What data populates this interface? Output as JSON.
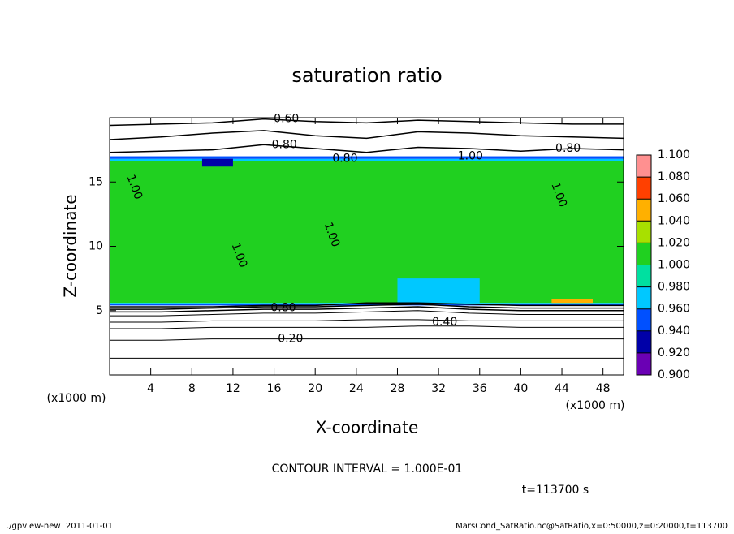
{
  "chart_data": {
    "type": "contour",
    "title": "saturation ratio",
    "x_label": "X-coordinate",
    "y_label": "Z-coordinate",
    "x_unit": "(x1000 m)",
    "y_unit": "(x1000 m)",
    "xlim": [
      0,
      50
    ],
    "xticks": [
      4,
      8,
      12,
      16,
      20,
      24,
      28,
      32,
      36,
      40,
      44,
      48
    ],
    "ylim": [
      0,
      20
    ],
    "yticks": [
      5,
      10,
      15
    ],
    "colorbar_levels": [
      {
        "value": 0.9,
        "label": "0.900"
      },
      {
        "value": 0.92,
        "label": "0.920"
      },
      {
        "value": 0.94,
        "label": "0.940"
      },
      {
        "value": 0.96,
        "label": "0.960"
      },
      {
        "value": 0.98,
        "label": "0.980"
      },
      {
        "value": 1.0,
        "label": "1.000"
      },
      {
        "value": 1.02,
        "label": "1.020"
      },
      {
        "value": 1.04,
        "label": "1.040"
      },
      {
        "value": 1.06,
        "label": "1.060"
      },
      {
        "value": 1.08,
        "label": "1.080"
      },
      {
        "value": 1.1,
        "label": "1.100"
      }
    ],
    "colorbar_colors": [
      "#6a00b4",
      "#0000a8",
      "#0050ff",
      "#00c8ff",
      "#00e0a0",
      "#20d020",
      "#a8e000",
      "#ffb000",
      "#ff4000",
      "#ff9090"
    ],
    "field": [
      {
        "x0": 0,
        "x1": 50,
        "z0": 5.6,
        "z1": 16.6,
        "value": 1.01
      },
      {
        "x0": 0,
        "x1": 50,
        "z0": 16.6,
        "z1": 16.8,
        "value": 0.97
      },
      {
        "x0": 0,
        "x1": 50,
        "z0": 16.8,
        "z1": 17.0,
        "value": 0.95
      },
      {
        "x0": 0,
        "x1": 50,
        "z0": 5.5,
        "z1": 5.6,
        "value": 0.97
      },
      {
        "x0": 0,
        "x1": 50,
        "z0": 5.4,
        "z1": 5.5,
        "value": 0.95
      },
      {
        "x0": 43,
        "x1": 47,
        "z0": 5.6,
        "z1": 5.9,
        "value": 1.05
      },
      {
        "x0": 9,
        "x1": 12,
        "z0": 16.2,
        "z1": 16.8,
        "value": 0.93
      },
      {
        "x0": 28,
        "x1": 36,
        "z0": 5.6,
        "z1": 7.5,
        "value": 0.97
      }
    ],
    "contour_x": [
      0,
      5,
      10,
      15,
      20,
      25,
      30,
      35,
      40,
      45,
      50
    ],
    "contours": [
      {
        "level": 0.1,
        "z": [
          1.3,
          1.3,
          1.3,
          1.3,
          1.3,
          1.3,
          1.3,
          1.3,
          1.3,
          1.3,
          1.3
        ]
      },
      {
        "level": 0.2,
        "z": [
          2.7,
          2.7,
          2.8,
          2.8,
          2.8,
          2.8,
          2.8,
          2.8,
          2.8,
          2.8,
          2.8
        ]
      },
      {
        "level": 0.3,
        "z": [
          3.6,
          3.6,
          3.7,
          3.7,
          3.7,
          3.7,
          3.8,
          3.8,
          3.7,
          3.7,
          3.7
        ]
      },
      {
        "level": 0.4,
        "z": [
          4.1,
          4.1,
          4.2,
          4.2,
          4.2,
          4.3,
          4.3,
          4.2,
          4.2,
          4.2,
          4.2
        ]
      },
      {
        "level": 0.5,
        "z": [
          4.6,
          4.6,
          4.7,
          4.8,
          4.8,
          4.9,
          5.0,
          4.8,
          4.7,
          4.7,
          4.7
        ]
      },
      {
        "level": 0.6,
        "z": [
          4.9,
          4.9,
          5.0,
          5.1,
          5.1,
          5.2,
          5.3,
          5.1,
          5.0,
          5.0,
          5.0
        ]
      },
      {
        "level": 0.7,
        "z": [
          5.1,
          5.1,
          5.2,
          5.3,
          5.3,
          5.4,
          5.5,
          5.3,
          5.2,
          5.2,
          5.2
        ]
      },
      {
        "level": 0.8,
        "z": [
          5.3,
          5.3,
          5.3,
          5.4,
          5.4,
          5.6,
          5.6,
          5.5,
          5.4,
          5.4,
          5.4
        ]
      },
      {
        "level": 0.8,
        "z": [
          17.3,
          17.4,
          17.5,
          17.9,
          17.6,
          17.3,
          17.7,
          17.6,
          17.4,
          17.6,
          17.5
        ]
      },
      {
        "level": 0.7,
        "z": [
          18.3,
          18.5,
          18.8,
          19.0,
          18.6,
          18.4,
          18.9,
          18.8,
          18.6,
          18.5,
          18.4
        ]
      },
      {
        "level": 0.6,
        "z": [
          19.4,
          19.5,
          19.6,
          19.9,
          19.7,
          19.6,
          19.8,
          19.7,
          19.6,
          19.5,
          19.5
        ]
      }
    ],
    "contour_labels": [
      {
        "text": "0.60",
        "x": 17.2,
        "z": 19.9,
        "orientation": "horizontal"
      },
      {
        "text": "0.80",
        "x": 17.0,
        "z": 17.9,
        "orientation": "horizontal"
      },
      {
        "text": "0.80",
        "x": 22.9,
        "z": 16.8,
        "orientation": "horizontal"
      },
      {
        "text": "1.00",
        "x": 35.1,
        "z": 17.0,
        "orientation": "horizontal"
      },
      {
        "text": "0.80",
        "x": 44.6,
        "z": 17.6,
        "orientation": "horizontal"
      },
      {
        "text": "1.00",
        "x": 2.4,
        "z": 14.6,
        "orientation": "vertical"
      },
      {
        "text": "1.00",
        "x": 12.6,
        "z": 9.3,
        "orientation": "vertical"
      },
      {
        "text": "1.00",
        "x": 21.6,
        "z": 10.9,
        "orientation": "vertical"
      },
      {
        "text": "1.00",
        "x": 43.7,
        "z": 14.0,
        "orientation": "vertical"
      },
      {
        "text": "0.80",
        "x": 16.9,
        "z": 5.2,
        "orientation": "horizontal"
      },
      {
        "text": "0.40",
        "x": 32.6,
        "z": 4.1,
        "orientation": "horizontal"
      },
      {
        "text": "0.20",
        "x": 17.6,
        "z": 2.8,
        "orientation": "horizontal"
      }
    ],
    "contour_interval": "CONTOUR INTERVAL = 1.000E-01",
    "time_label": "t=113700 s",
    "footer_left": "./gpview-new  2011-01-01",
    "footer_right": "MarsCond_SatRatio.nc@SatRatio,x=0:50000,z=0:20000,t=113700"
  }
}
